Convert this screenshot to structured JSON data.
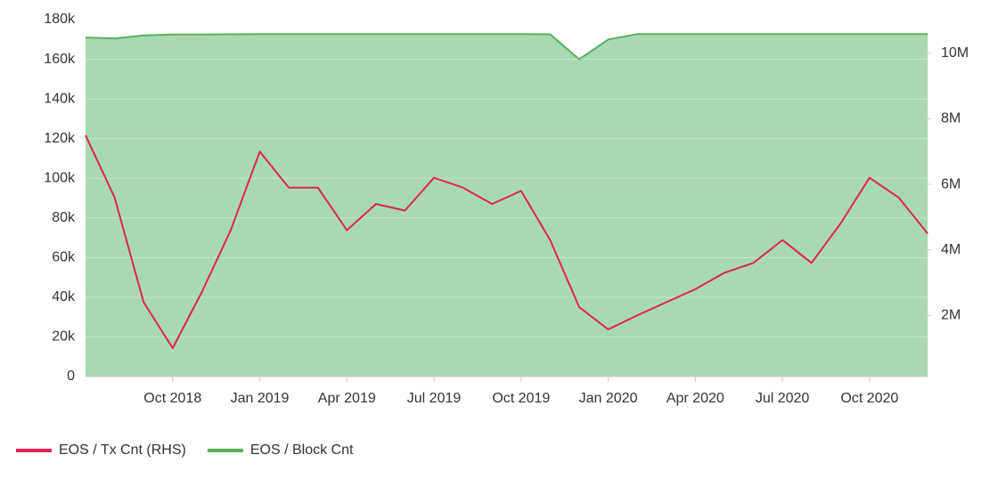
{
  "chart_data": {
    "type": "line",
    "x": [
      "2018-07",
      "2018-08",
      "2018-09",
      "2018-10",
      "2018-11",
      "2018-12",
      "2019-01",
      "2019-02",
      "2019-03",
      "2019-04",
      "2019-05",
      "2019-06",
      "2019-07",
      "2019-08",
      "2019-09",
      "2019-10",
      "2019-11",
      "2019-12",
      "2020-01",
      "2020-02",
      "2020-03",
      "2020-04",
      "2020-05",
      "2020-06",
      "2020-07",
      "2020-08",
      "2020-09",
      "2020-10",
      "2020-11",
      "2020-12"
    ],
    "xlim": [
      "2018-07",
      "2020-12"
    ],
    "xticks": [
      {
        "value": "2018-10",
        "label": "Oct 2018"
      },
      {
        "value": "2019-01",
        "label": "Jan 2019"
      },
      {
        "value": "2019-04",
        "label": "Apr 2019"
      },
      {
        "value": "2019-07",
        "label": "Jul 2019"
      },
      {
        "value": "2019-10",
        "label": "Oct 2019"
      },
      {
        "value": "2020-01",
        "label": "Jan 2020"
      },
      {
        "value": "2020-04",
        "label": "Apr 2020"
      },
      {
        "value": "2020-07",
        "label": "Jul 2020"
      },
      {
        "value": "2020-10",
        "label": "Oct 2020"
      }
    ],
    "ylim": [
      0,
      180000
    ],
    "yticks": [
      0,
      {
        "value": 20000,
        "label": "20k"
      },
      {
        "value": 40000,
        "label": "40k"
      },
      {
        "value": 60000,
        "label": "60k"
      },
      {
        "value": 80000,
        "label": "80k"
      },
      {
        "value": 100000,
        "label": "100k"
      },
      {
        "value": 120000,
        "label": "120k"
      },
      {
        "value": 140000,
        "label": "140k"
      },
      {
        "value": 160000,
        "label": "160k"
      },
      {
        "value": 180000,
        "label": "180k"
      }
    ],
    "y2lim": [
      130000,
      11030000
    ],
    "y2ticks": [
      {
        "value": 2000000,
        "label": "2M"
      },
      {
        "value": 4000000,
        "label": "4M"
      },
      {
        "value": 6000000,
        "label": "6M"
      },
      {
        "value": 8000000,
        "label": "8M"
      },
      {
        "value": 10000000,
        "label": "10M"
      }
    ],
    "grid": true,
    "series": [
      {
        "name": "EOS / Tx Cnt (RHS)",
        "color": "#e0234e",
        "axis": "y2",
        "values": [
          7500000,
          5600000,
          2400000,
          1000000,
          2700000,
          4600000,
          7000000,
          5900000,
          5900000,
          4600000,
          5400000,
          5200000,
          6200000,
          5900000,
          5400000,
          5800000,
          4300000,
          2250000,
          1570000,
          2000000,
          2400000,
          2800000,
          3300000,
          3600000,
          4300000,
          3600000,
          4800000,
          6200000,
          5600000,
          4500000
        ]
      },
      {
        "name": "EOS / Block Cnt",
        "color": "#5aaf5e",
        "fill": "#a8d9b2",
        "values": [
          171000,
          170500,
          172000,
          172500,
          172500,
          172600,
          172700,
          172700,
          172700,
          172700,
          172700,
          172700,
          172700,
          172700,
          172700,
          172700,
          172600,
          160000,
          170000,
          172700,
          172700,
          172700,
          172700,
          172700,
          172700,
          172700,
          172700,
          172700,
          172700,
          172700
        ]
      }
    ]
  }
}
